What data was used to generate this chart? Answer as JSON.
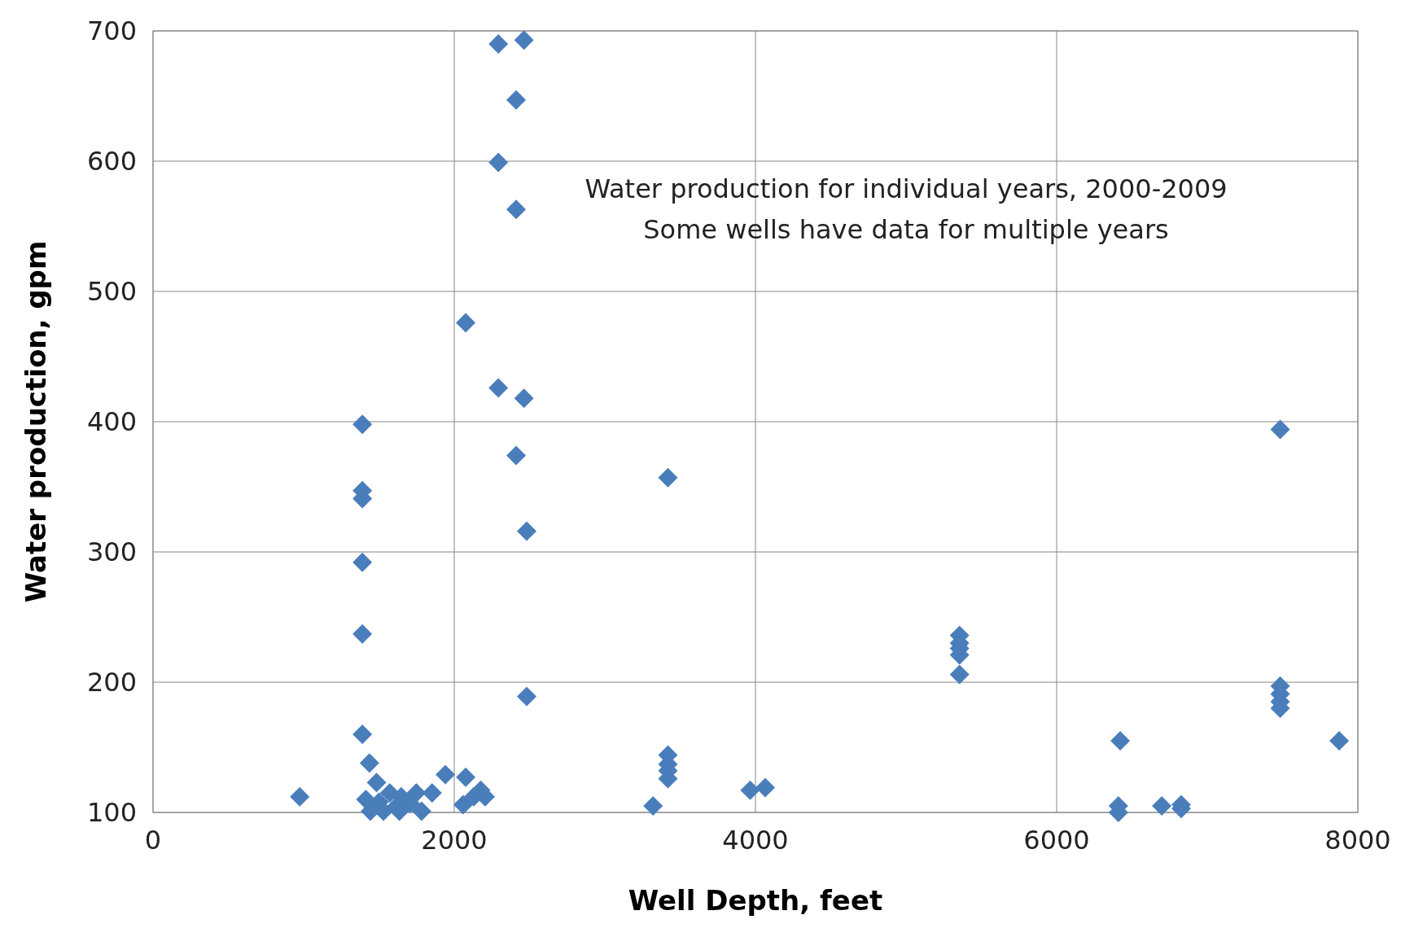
{
  "chart_data": {
    "type": "scatter",
    "xlabel": "Well Depth, feet",
    "ylabel": "Water production, gpm",
    "annotations": [
      "Water production for individual years, 2000-2009",
      "Some wells have data for multiple years"
    ],
    "xlim": [
      0,
      8000
    ],
    "xticks": [
      0,
      2000,
      4000,
      6000,
      8000
    ],
    "ylim": [
      100,
      700
    ],
    "yticks": [
      100,
      200,
      300,
      400,
      500,
      600,
      700
    ],
    "grid": true,
    "marker": "diamond",
    "series": [
      {
        "color": "#4a7ebb",
        "x": [
          974,
          1390,
          1390,
          1390,
          1390,
          1390,
          1390,
          1437,
          1484,
          1413,
          1443,
          1501,
          1530,
          1572,
          1619,
          1648,
          1707,
          1748,
          1636,
          1783,
          1853,
          1941,
          2076,
          2059,
          2129,
          2176,
          2205,
          2293,
          2463,
          2411,
          2293,
          2411,
          2076,
          2293,
          2463,
          2411,
          2481,
          2481,
          3320,
          3419,
          3419,
          3419,
          3419,
          3419,
          3965,
          4065,
          5355,
          5355,
          5355,
          5355,
          5355,
          6422,
          6410,
          6410,
          6698,
          6827,
          6827,
          7484,
          7484,
          7484,
          7484,
          7484,
          7876
        ],
        "values": [
          112,
          398,
          347,
          341,
          292,
          237,
          160,
          138,
          123,
          110,
          101,
          108,
          101,
          115,
          105,
          112,
          107,
          115,
          101,
          101,
          115,
          129,
          127,
          106,
          112,
          117,
          112,
          690,
          693,
          647,
          599,
          563,
          476,
          426,
          418,
          374,
          316,
          189,
          105,
          144,
          137,
          132,
          126,
          357,
          117,
          119,
          236,
          230,
          226,
          221,
          206,
          155,
          105,
          100,
          105,
          106,
          103,
          394,
          197,
          191,
          185,
          180,
          155
        ]
      }
    ]
  }
}
